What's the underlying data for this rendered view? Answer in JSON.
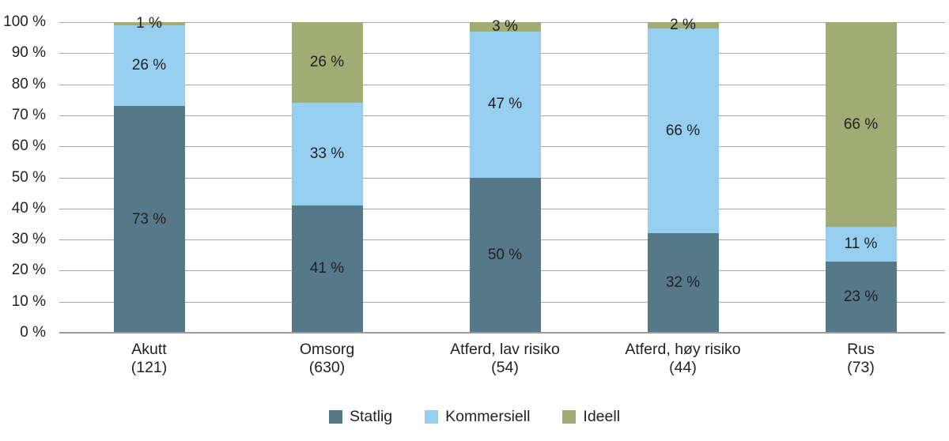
{
  "chart_data": {
    "type": "bar",
    "variant": "stacked-percent",
    "title": "",
    "categories": [
      "Akutt",
      "Omsorg",
      "Atferd, lav risiko",
      "Atferd, høy risiko",
      "Rus"
    ],
    "category_counts": [
      "(121)",
      "(630)",
      "(54)",
      "(44)",
      "(73)"
    ],
    "series": [
      {
        "name": "Statlig",
        "color": "#56798A",
        "values": [
          73,
          41,
          50,
          32,
          23
        ]
      },
      {
        "name": "Kommersiell",
        "color": "#96CFF0",
        "values": [
          26,
          33,
          47,
          66,
          11
        ]
      },
      {
        "name": "Ideell",
        "color": "#A0AC73",
        "values": [
          1,
          26,
          3,
          2,
          66
        ]
      }
    ],
    "value_suffix": " %",
    "y_ticks": [
      "0 %",
      "10 %",
      "20 %",
      "30 %",
      "40 %",
      "50 %",
      "60 %",
      "70 %",
      "80 %",
      "90 %",
      "100 %"
    ],
    "ylim": [
      0,
      100
    ],
    "grid": true,
    "legend_position": "bottom"
  },
  "style": {
    "grid_color": "#A7A7A7",
    "baseline_color": "#9B9B9B",
    "text_color": "#231F20",
    "background": "#FFFFFF"
  }
}
